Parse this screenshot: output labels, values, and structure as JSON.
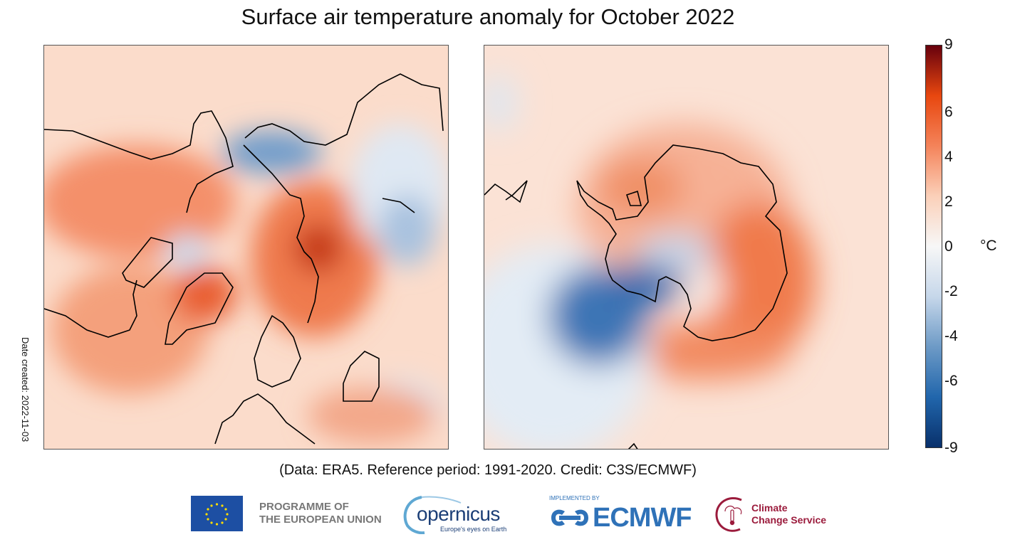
{
  "chart_data": {
    "type": "heatmap",
    "title": "Surface air temperature anomaly for October 2022",
    "panels": [
      {
        "name": "northern-hemisphere-polar",
        "region": "Arctic / Northern Hemisphere"
      },
      {
        "name": "southern-hemisphere-polar",
        "region": "Antarctica / Southern Hemisphere"
      }
    ],
    "colorbar": {
      "ticks": [
        9,
        6,
        4,
        2,
        0,
        -2,
        -4,
        -6,
        -9
      ],
      "tick_labels": [
        "9",
        "6",
        "4",
        "2",
        "0",
        "-2",
        "-4",
        "-6",
        "-9"
      ],
      "range": [
        -9,
        9
      ],
      "unit": "°C",
      "colors": [
        "#08306b",
        "#2166ac",
        "#6d9ac6",
        "#c6d7ea",
        "#f7f7f7",
        "#fbd0b9",
        "#f4835a",
        "#e8470f",
        "#67000d"
      ]
    },
    "credit": "(Data: ERA5.  Reference period: 1991-2020.  Credit: C3S/ECMWF)",
    "date_created": "Date created: 2022-11-03"
  },
  "logos": {
    "eu": "PROGRAMME OF THE EUROPEAN UNION",
    "eu_line1": "PROGRAMME OF",
    "eu_line2": "THE EUROPEAN UNION",
    "copernicus": "opernicus",
    "copernicus_full": "Copernicus",
    "copernicus_tag": "Europe's eyes on Earth",
    "implemented_by": "IMPLEMENTED BY",
    "ecmwf": "ECMWF",
    "c3s_line1": "Climate",
    "c3s_line2": "Change Service"
  }
}
